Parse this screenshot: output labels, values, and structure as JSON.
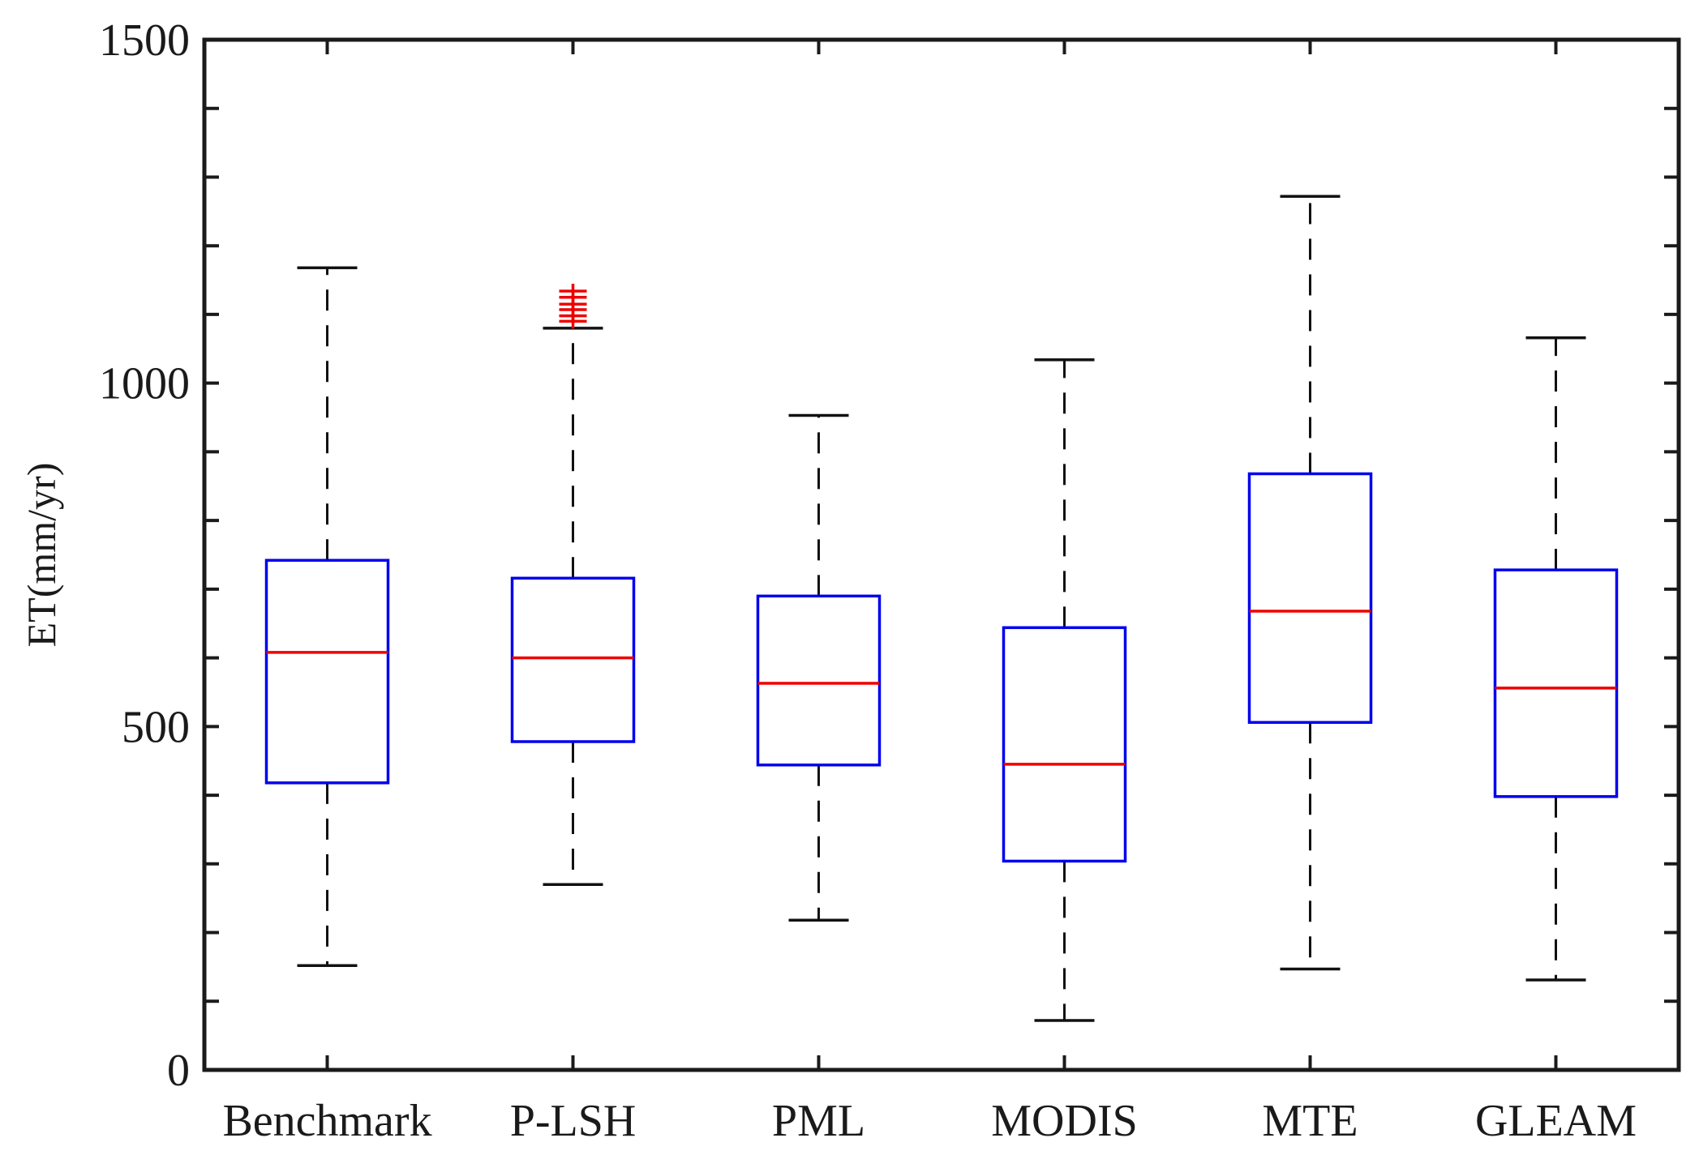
{
  "chart_data": {
    "type": "boxplot",
    "title": "",
    "xlabel": "",
    "ylabel": "ET(mm/yr)",
    "ylim": [
      0,
      1500
    ],
    "yticks": [
      0,
      100,
      200,
      300,
      400,
      500,
      600,
      700,
      800,
      900,
      1000,
      1100,
      1200,
      1300,
      1400,
      1500
    ],
    "ytick_labels": [
      "0",
      "500",
      "1000",
      "1500"
    ],
    "ytick_label_values": [
      0,
      500,
      1000,
      1500
    ],
    "categories": [
      "Benchmark",
      "P-LSH",
      "PML",
      "MODIS",
      "MTE",
      "GLEAM"
    ],
    "boxes": [
      {
        "name": "Benchmark",
        "whisker_low": 152,
        "q1": 418,
        "median": 608,
        "q3": 742,
        "whisker_high": 1168,
        "outliers": []
      },
      {
        "name": "P-LSH",
        "whisker_low": 270,
        "q1": 478,
        "median": 600,
        "q3": 716,
        "whisker_high": 1080,
        "outliers": [
          1090,
          1098,
          1107,
          1115,
          1125,
          1134
        ]
      },
      {
        "name": "PML",
        "whisker_low": 218,
        "q1": 444,
        "median": 563,
        "q3": 690,
        "whisker_high": 953,
        "outliers": []
      },
      {
        "name": "MODIS",
        "whisker_low": 72,
        "q1": 304,
        "median": 445,
        "q3": 644,
        "whisker_high": 1034,
        "outliers": []
      },
      {
        "name": "MTE",
        "whisker_low": 147,
        "q1": 506,
        "median": 668,
        "q3": 868,
        "whisker_high": 1272,
        "outliers": []
      },
      {
        "name": "GLEAM",
        "whisker_low": 131,
        "q1": 398,
        "median": 556,
        "q3": 728,
        "whisker_high": 1066,
        "outliers": []
      }
    ],
    "colors": {
      "box": "#0000ee",
      "median": "#ee0000",
      "outlier": "#ee0000",
      "whisker": "#111111",
      "axis": "#1a1a1a"
    },
    "grid": false,
    "legend": "none"
  }
}
